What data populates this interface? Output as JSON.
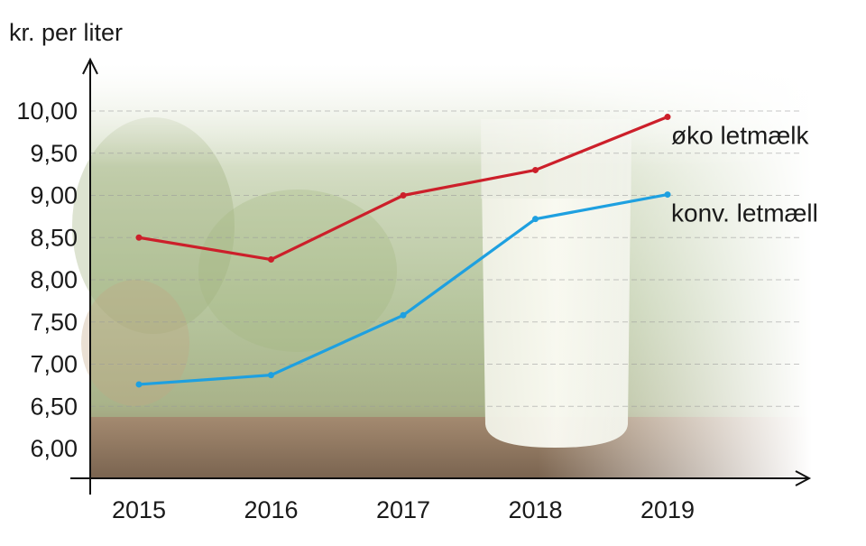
{
  "chart_data": {
    "type": "line",
    "ylabel": "kr. per liter",
    "categories": [
      "2015",
      "2016",
      "2017",
      "2018",
      "2019"
    ],
    "yticks": [
      "6,00",
      "6,50",
      "7,00",
      "7,50",
      "8,00",
      "8,50",
      "9,00",
      "9,50",
      "10,00"
    ],
    "ylim": [
      5.7,
      10.5
    ],
    "grid": true,
    "series": [
      {
        "name": "øko letmælk",
        "color": "#cc1f2a",
        "values": [
          8.5,
          8.24,
          9.0,
          9.3,
          9.93
        ]
      },
      {
        "name": "konv. letmæll",
        "color": "#1ea0e0",
        "values": [
          6.76,
          6.87,
          7.58,
          8.72,
          9.01
        ]
      }
    ]
  }
}
